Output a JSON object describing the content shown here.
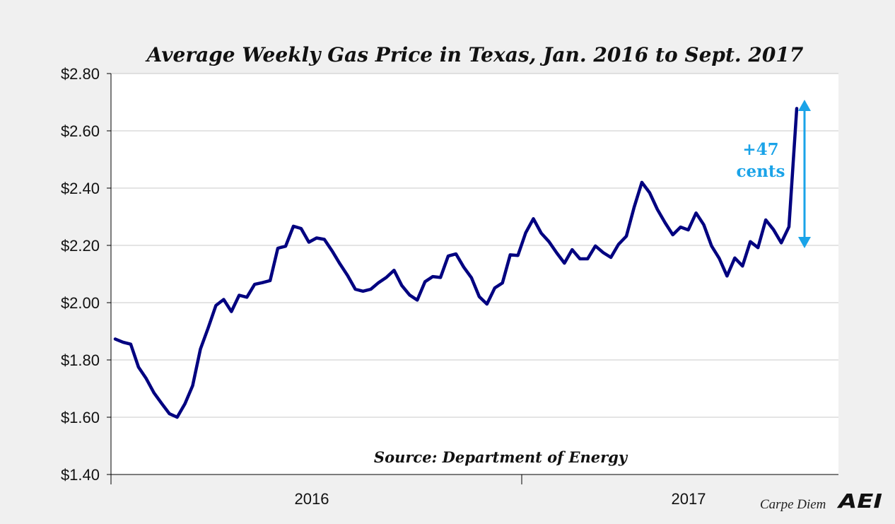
{
  "chart_data": {
    "type": "line",
    "title": "Average Weekly Gas Price in Texas, Jan. 2016 to Sept. 2017",
    "xlabel": "",
    "ylabel": "",
    "ylim": [
      1.4,
      2.8
    ],
    "y_ticks": [
      "$1.40",
      "$1.60",
      "$1.80",
      "$2.00",
      "$2.20",
      "$2.40",
      "$2.60",
      "$2.80"
    ],
    "y_tick_values": [
      1.4,
      1.6,
      1.8,
      2.0,
      2.2,
      2.4,
      2.6,
      2.8
    ],
    "x_ticks": [
      "2016",
      "2017"
    ],
    "grid": true,
    "series": [
      {
        "color": "#000080",
        "values": [
          1.873,
          1.862,
          1.855,
          1.775,
          1.735,
          1.685,
          1.648,
          1.612,
          1.6,
          1.647,
          1.71,
          1.838,
          1.912,
          1.99,
          2.011,
          1.969,
          2.026,
          2.019,
          2.064,
          2.07,
          2.077,
          2.19,
          2.197,
          2.267,
          2.259,
          2.211,
          2.226,
          2.221,
          2.181,
          2.136,
          2.095,
          2.047,
          2.04,
          2.047,
          2.07,
          2.088,
          2.113,
          2.06,
          2.027,
          2.009,
          2.073,
          2.091,
          2.088,
          2.163,
          2.17,
          2.124,
          2.087,
          2.021,
          1.995,
          2.051,
          2.069,
          2.167,
          2.165,
          2.244,
          2.293,
          2.243,
          2.213,
          2.174,
          2.138,
          2.185,
          2.153,
          2.153,
          2.198,
          2.175,
          2.158,
          2.204,
          2.232,
          2.333,
          2.42,
          2.384,
          2.326,
          2.279,
          2.237,
          2.264,
          2.254,
          2.313,
          2.272,
          2.198,
          2.154,
          2.093,
          2.156,
          2.128,
          2.213,
          2.192,
          2.289,
          2.255,
          2.209,
          2.265,
          2.678
        ]
      }
    ],
    "annotations": {
      "source": "Source: Department of Energy",
      "change_line1": "+47",
      "change_line2": "cents",
      "arrow_color": "#1aa3e8",
      "arrow_range": [
        2.21,
        2.68
      ]
    }
  },
  "branding": {
    "label": "Carpe Diem",
    "logo_text": "AEI"
  }
}
